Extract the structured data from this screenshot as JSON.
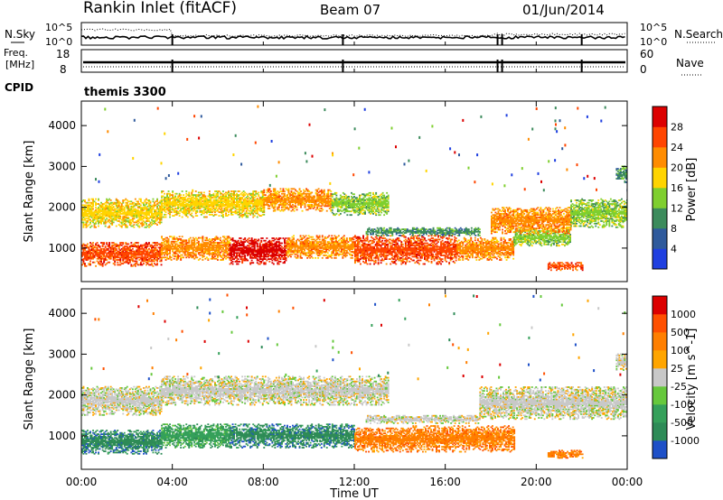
{
  "header": {
    "title": "Rankin Inlet (fitACF)",
    "beam": "Beam 07",
    "date": "01/Jun/2014"
  },
  "strips": {
    "nsky_label": "N.Sky",
    "nsearch_label": "N.Search",
    "noise_top_tick": "10^5",
    "noise_bottom_tick": "10^0",
    "freq_label_1": "Freq.",
    "freq_label_2": "[MHz]",
    "freq_ticks": [
      "18",
      "8"
    ],
    "nave_label": "Nave",
    "nave_ticks": [
      "60",
      "0"
    ],
    "cpid_label": "CPID",
    "cpid_value": "themis 3300"
  },
  "colors": {
    "power_scale": [
      "#1f3fe0",
      "#2f5a9c",
      "#3c8b5c",
      "#7fcf2f",
      "#ffd400",
      "#ff8c00",
      "#ff4500",
      "#dc0000"
    ],
    "velocity_scale": [
      "#1e50c8",
      "#2e8b57",
      "#35a05a",
      "#66c83c",
      "#c8c8c8",
      "#ffa500",
      "#ff7f00",
      "#ff5000",
      "#dc0000"
    ]
  },
  "chart_data": [
    {
      "type": "heatmap",
      "name": "power",
      "xlabel": "",
      "ylabel": "Slant Range [km]",
      "xlim": [
        0,
        24
      ],
      "ylim": [
        180,
        4600
      ],
      "y_ticks": [
        1000,
        2000,
        3000,
        4000
      ],
      "x_tick_labels": [],
      "colorbar_label": "Power [dB]",
      "colorbar_ticks": [
        "28",
        "24",
        "20",
        "16",
        "12",
        "8",
        "4"
      ],
      "bands": [
        {
          "t0": 0.0,
          "t1": 3.5,
          "r0": 550,
          "r1": 1150,
          "level": 6
        },
        {
          "t0": 3.5,
          "t1": 6.5,
          "r0": 700,
          "r1": 1300,
          "level": 5
        },
        {
          "t0": 6.5,
          "t1": 9.0,
          "r0": 600,
          "r1": 1250,
          "level": 7
        },
        {
          "t0": 9.0,
          "t1": 12.0,
          "r0": 750,
          "r1": 1300,
          "level": 5
        },
        {
          "t0": 12.0,
          "t1": 16.5,
          "r0": 600,
          "r1": 1300,
          "level": 6
        },
        {
          "t0": 16.5,
          "t1": 19.0,
          "r0": 700,
          "r1": 1250,
          "level": 5
        },
        {
          "t0": 19.0,
          "t1": 21.5,
          "r0": 1050,
          "r1": 1450,
          "level": 3
        },
        {
          "t0": 20.5,
          "t1": 22.0,
          "r0": 450,
          "r1": 650,
          "level": 6
        },
        {
          "t0": 0.0,
          "t1": 3.5,
          "r0": 1500,
          "r1": 2200,
          "level": 4
        },
        {
          "t0": 3.5,
          "t1": 8.0,
          "r0": 1750,
          "r1": 2400,
          "level": 4
        },
        {
          "t0": 8.0,
          "t1": 11.0,
          "r0": 1900,
          "r1": 2450,
          "level": 5
        },
        {
          "t0": 11.0,
          "t1": 13.5,
          "r0": 1800,
          "r1": 2350,
          "level": 3
        },
        {
          "t0": 18.0,
          "t1": 21.5,
          "r0": 1350,
          "r1": 2000,
          "level": 5
        },
        {
          "t0": 21.5,
          "t1": 24.0,
          "r0": 1500,
          "r1": 2200,
          "level": 3
        },
        {
          "t0": 23.5,
          "t1": 24.0,
          "r0": 2600,
          "r1": 3000,
          "level": 2
        },
        {
          "t0": 12.5,
          "t1": 17.5,
          "r0": 1300,
          "r1": 1500,
          "level": 2
        }
      ]
    },
    {
      "type": "heatmap",
      "name": "velocity",
      "xlabel": "Time UT",
      "ylabel": "Slant Range [km]",
      "xlim": [
        0,
        24
      ],
      "ylim": [
        180,
        4600
      ],
      "y_ticks": [
        1000,
        2000,
        3000,
        4000
      ],
      "x_tick_labels": [
        "00:00",
        "04:00",
        "08:00",
        "12:00",
        "16:00",
        "20:00",
        "00:00"
      ],
      "colorbar_label": "Velocity [m s^-1]",
      "colorbar_ticks": [
        "1000",
        "500",
        "100",
        "25",
        "-25",
        "-100",
        "-500",
        "-1000"
      ],
      "bands": [
        {
          "t0": 0.0,
          "t1": 3.5,
          "r0": 550,
          "r1": 1150,
          "level": 1
        },
        {
          "t0": 3.5,
          "t1": 6.5,
          "r0": 700,
          "r1": 1300,
          "level": 2
        },
        {
          "t0": 6.5,
          "t1": 12.0,
          "r0": 700,
          "r1": 1300,
          "level": 1
        },
        {
          "t0": 12.0,
          "t1": 14.5,
          "r0": 600,
          "r1": 1200,
          "level": 6
        },
        {
          "t0": 14.5,
          "t1": 19.0,
          "r0": 600,
          "r1": 1250,
          "level": 6
        },
        {
          "t0": 20.5,
          "t1": 22.0,
          "r0": 450,
          "r1": 650,
          "level": 6
        },
        {
          "t0": 0.0,
          "t1": 3.5,
          "r0": 1500,
          "r1": 2200,
          "level": 4
        },
        {
          "t0": 3.5,
          "t1": 13.5,
          "r0": 1750,
          "r1": 2450,
          "level": 4
        },
        {
          "t0": 17.5,
          "t1": 24.0,
          "r0": 1400,
          "r1": 2200,
          "level": 4
        },
        {
          "t0": 23.5,
          "t1": 24.0,
          "r0": 2600,
          "r1": 3000,
          "level": 4
        },
        {
          "t0": 12.5,
          "t1": 17.5,
          "r0": 1300,
          "r1": 1500,
          "level": 4
        }
      ]
    }
  ]
}
